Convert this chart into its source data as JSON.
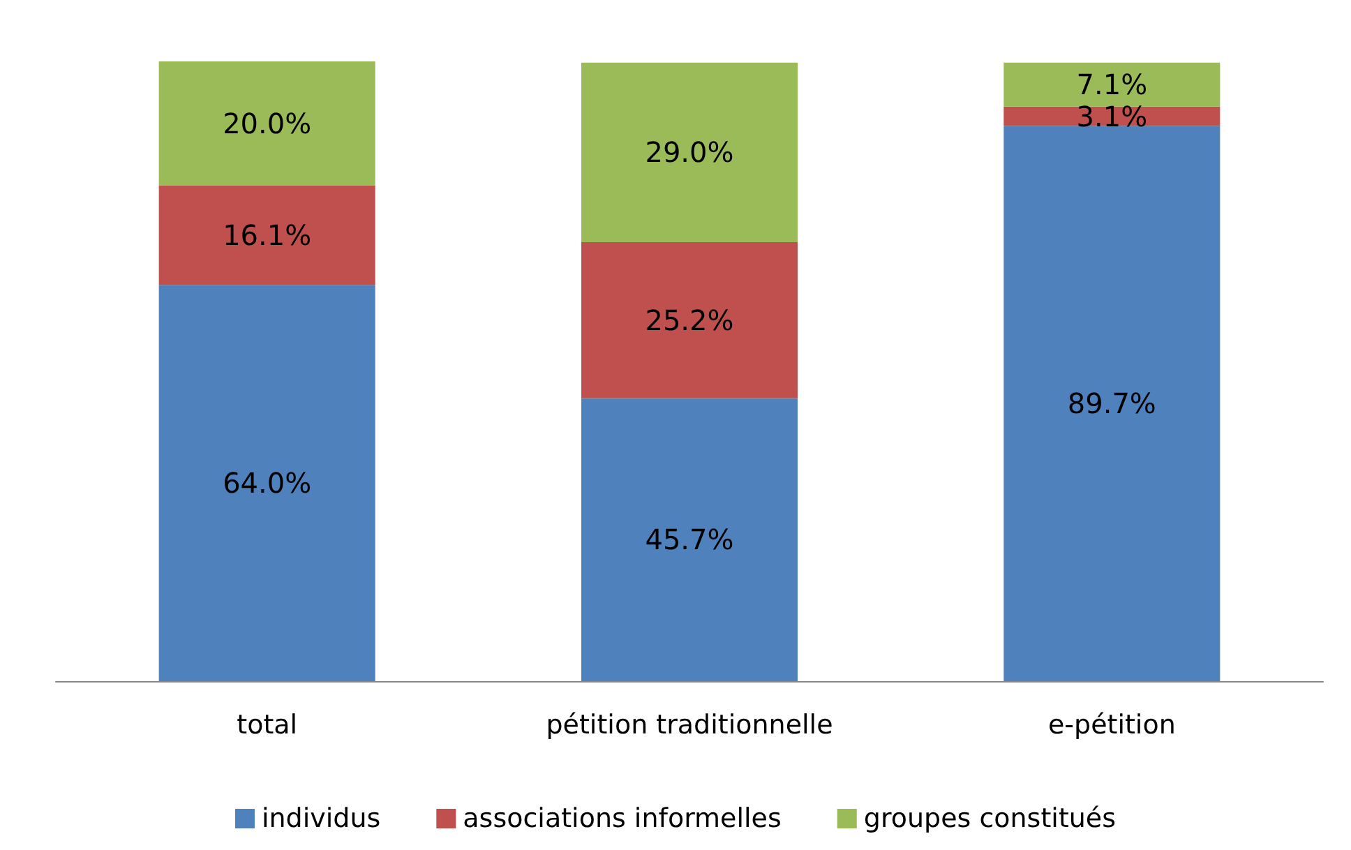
{
  "chart_data": {
    "type": "bar",
    "stacked": true,
    "categories": [
      "total",
      "pétition traditionnelle",
      "e-pétition"
    ],
    "series": [
      {
        "name": "individus",
        "color": "#4f81bd",
        "values": [
          64.0,
          45.7,
          89.7
        ],
        "value_labels": [
          "64.0%",
          "45.7%",
          "89.7%"
        ]
      },
      {
        "name": "associations informelles",
        "color": "#c0504d",
        "values": [
          16.1,
          25.2,
          3.1
        ],
        "value_labels": [
          "16.1%",
          "25.2%",
          "3.1%"
        ]
      },
      {
        "name": "groupes constitués",
        "color": "#9bbb59",
        "values": [
          20.0,
          29.0,
          7.1
        ],
        "value_labels": [
          "20.0%",
          "29.0%",
          "7.1%"
        ]
      }
    ],
    "legend": "bottom"
  }
}
